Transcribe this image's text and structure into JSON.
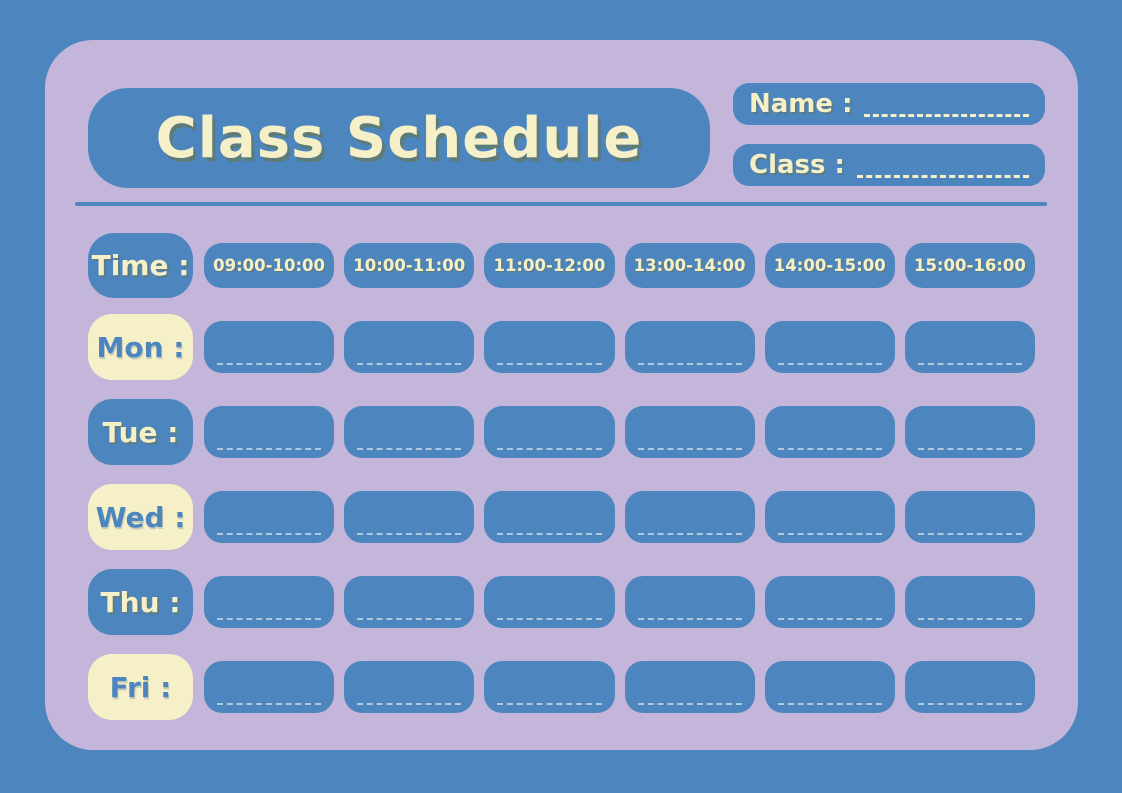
{
  "header": {
    "title": "Class Schedule",
    "name_label": "Name :",
    "class_label": "Class :"
  },
  "schedule": {
    "time_label": "Time :",
    "time_slots": [
      "09:00-10:00",
      "10:00-11:00",
      "11:00-12:00",
      "13:00-14:00",
      "14:00-15:00",
      "15:00-16:00"
    ],
    "days": [
      {
        "label": "Mon :",
        "style": "cream"
      },
      {
        "label": "Tue :",
        "style": "blue"
      },
      {
        "label": "Wed :",
        "style": "cream"
      },
      {
        "label": "Thu :",
        "style": "blue"
      },
      {
        "label": "Fri :",
        "style": "cream"
      }
    ]
  },
  "colors": {
    "background_blue": "#4d86be",
    "card_purple": "#c4b6da",
    "cream": "#f6f0c8",
    "box_blue": "#4d86be"
  }
}
